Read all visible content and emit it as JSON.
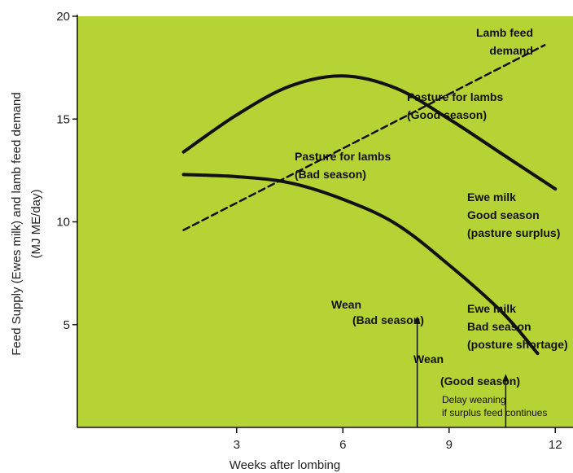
{
  "colors": {
    "plot_bg": "#b5d334",
    "page_bg": "#ffffff",
    "ink": "#111111"
  },
  "chart_data": {
    "type": "line",
    "xlabel": "Weeks after lombing",
    "ylabel_line1": "Feed Supply (Ewes milk) and lamb feed demand",
    "ylabel_line2": "(MJ ME/day)",
    "xlim": [
      -1.5,
      12.5
    ],
    "ylim": [
      0,
      20
    ],
    "x_ticks": [
      "3",
      "6",
      "9",
      "12"
    ],
    "y_ticks": [
      "5",
      "10",
      "15",
      "20"
    ],
    "grid": false,
    "series": [
      {
        "id": "good",
        "style": "solid",
        "x": [
          1.5,
          3,
          4.5,
          6,
          7.5,
          9,
          10.5,
          12
        ],
        "y": [
          13.4,
          15.2,
          16.6,
          17.1,
          16.5,
          15.0,
          13.3,
          11.6
        ]
      },
      {
        "id": "bad",
        "style": "solid",
        "x": [
          1.5,
          3,
          4.5,
          6,
          7.5,
          9,
          10.5,
          11.5
        ],
        "y": [
          12.3,
          12.2,
          11.9,
          11.1,
          9.9,
          7.9,
          5.6,
          3.6
        ]
      },
      {
        "id": "demand",
        "style": "dashed",
        "x": [
          1.5,
          11.7
        ],
        "y": [
          9.6,
          18.6
        ]
      }
    ],
    "annotations": {
      "lamb_demand": [
        "Lamb feed",
        "demand"
      ],
      "pasture_good": [
        "Pasture for lambs",
        "(Good season)"
      ],
      "pasture_bad": [
        "Pasture for lambs",
        "(Bad season)"
      ],
      "ewe_good": [
        "Ewe milk",
        "Good season",
        "(pasture surplus)"
      ],
      "ewe_bad": [
        "Ewe milk",
        "Bad season",
        "(posture shortage)"
      ],
      "wean_bad": [
        "Wean",
        "(Bad season)"
      ],
      "wean_good": [
        "Wean",
        "(Good season)"
      ],
      "delay": [
        "Delay weaning",
        "if surplus feed continues"
      ]
    },
    "wean_arrows": [
      {
        "id": "wean-bad",
        "x": 8.1,
        "y_from": 0,
        "y_to": 5.4
      },
      {
        "id": "wean-good",
        "x": 10.6,
        "y_from": 0,
        "y_to": 2.6
      }
    ]
  }
}
